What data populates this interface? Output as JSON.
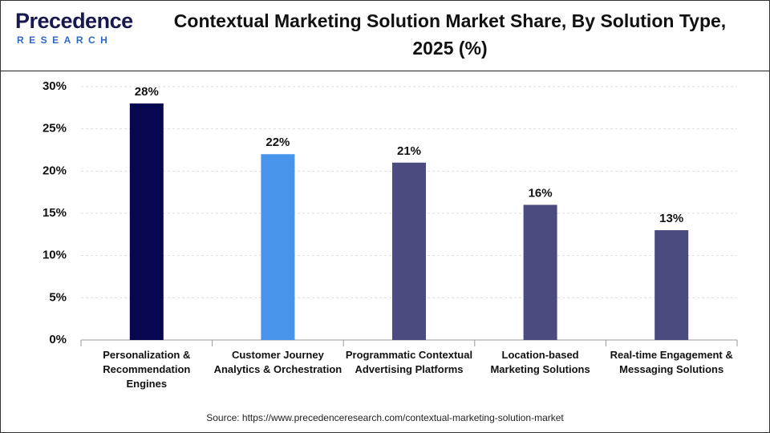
{
  "logo": {
    "name": "Precedence",
    "tagline": "RESEARCH"
  },
  "chart_data": {
    "type": "bar",
    "title": "Contextual Marketing Solution Market Share, By Solution Type, 2025 (%)",
    "categories": [
      "Personalization & Recommendation Engines",
      "Customer Journey Analytics & Orchestration",
      "Programmatic Contextual Advertising Platforms",
      "Location-based Marketing Solutions",
      "Real-time Engagement & Messaging Solutions"
    ],
    "values": [
      28,
      22,
      21,
      16,
      13
    ],
    "value_labels": [
      "28%",
      "22%",
      "21%",
      "16%",
      "13%"
    ],
    "colors": [
      "#070751",
      "#4894ec",
      "#4b4b80",
      "#4b4b80",
      "#4b4b80"
    ],
    "ylim": [
      0,
      30
    ],
    "yticks": [
      {
        "value": 0,
        "label": "0%"
      },
      {
        "value": 5,
        "label": "5%"
      },
      {
        "value": 10,
        "label": "10%"
      },
      {
        "value": 15,
        "label": "15%"
      },
      {
        "value": 20,
        "label": "20%"
      },
      {
        "value": 25,
        "label": "25%"
      },
      {
        "value": 30,
        "label": "30%"
      }
    ],
    "grid": true,
    "source": "Source: https://www.precedenceresearch.com/contextual-marketing-solution-market"
  }
}
